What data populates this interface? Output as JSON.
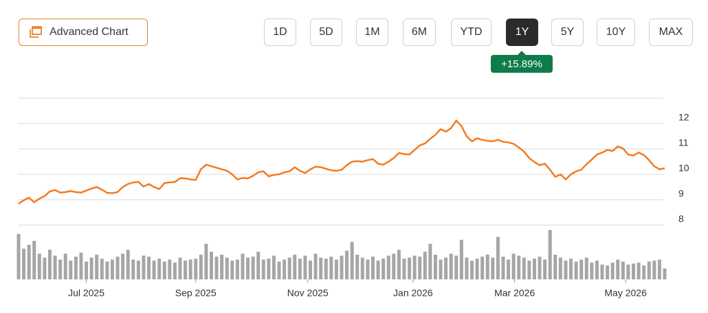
{
  "toolbar": {
    "advanced_chart": "Advanced Chart",
    "ranges": [
      "1D",
      "5D",
      "1M",
      "6M",
      "YTD",
      "1Y",
      "5Y",
      "10Y",
      "MAX"
    ],
    "active_range": "1Y",
    "change": "+15.89%"
  },
  "chart_data": {
    "type": "line",
    "price": {
      "color": "#f47b20",
      "values": [
        8.84,
        8.98,
        9.08,
        8.9,
        9.04,
        9.14,
        9.33,
        9.38,
        9.28,
        9.3,
        9.34,
        9.3,
        9.28,
        9.36,
        9.44,
        9.5,
        9.4,
        9.27,
        9.26,
        9.3,
        9.5,
        9.62,
        9.68,
        9.7,
        9.52,
        9.62,
        9.5,
        9.42,
        9.66,
        9.68,
        9.7,
        9.85,
        9.84,
        9.8,
        9.78,
        10.2,
        10.38,
        10.32,
        10.26,
        10.2,
        10.14,
        10.0,
        9.8,
        9.86,
        9.84,
        9.94,
        10.08,
        10.12,
        9.92,
        9.98,
        10.0,
        10.08,
        10.12,
        10.28,
        10.14,
        10.05,
        10.2,
        10.3,
        10.28,
        10.22,
        10.16,
        10.14,
        10.18,
        10.36,
        10.5,
        10.52,
        10.5,
        10.56,
        10.6,
        10.42,
        10.38,
        10.5,
        10.64,
        10.84,
        10.8,
        10.78,
        10.96,
        11.14,
        11.22,
        11.4,
        11.56,
        11.78,
        11.68,
        11.82,
        12.12,
        11.9,
        11.5,
        11.3,
        11.42,
        11.36,
        11.32,
        11.3,
        11.36,
        11.28,
        11.26,
        11.2,
        11.06,
        10.9,
        10.64,
        10.48,
        10.36,
        10.42,
        10.18,
        9.9,
        10.0,
        9.8,
        10.0,
        10.12,
        10.18,
        10.4,
        10.58,
        10.78,
        10.86,
        10.96,
        10.92,
        11.1,
        11.02,
        10.78,
        10.74,
        10.86,
        10.76,
        10.56,
        10.32,
        10.2,
        10.24
      ]
    },
    "volume": {
      "color": "#a6a6a6",
      "lim": [
        0,
        100
      ],
      "values": [
        92,
        62,
        70,
        78,
        52,
        44,
        60,
        48,
        40,
        52,
        38,
        46,
        54,
        36,
        44,
        50,
        42,
        36,
        40,
        46,
        52,
        60,
        40,
        38,
        48,
        46,
        38,
        42,
        36,
        40,
        34,
        44,
        38,
        40,
        42,
        50,
        72,
        56,
        46,
        50,
        44,
        38,
        40,
        52,
        44,
        46,
        56,
        40,
        42,
        48,
        36,
        40,
        44,
        50,
        42,
        48,
        38,
        52,
        44,
        42,
        46,
        40,
        48,
        58,
        76,
        50,
        44,
        40,
        46,
        38,
        42,
        48,
        52,
        60,
        42,
        44,
        48,
        46,
        56,
        72,
        50,
        40,
        44,
        52,
        48,
        80,
        44,
        38,
        42,
        46,
        50,
        44,
        86,
        46,
        40,
        52,
        48,
        44,
        38,
        42,
        46,
        40,
        100,
        50,
        44,
        38,
        42,
        36,
        40,
        44,
        34,
        38,
        30,
        28,
        34,
        40,
        36,
        30,
        32,
        34,
        28,
        36,
        38,
        40,
        22
      ]
    },
    "ylim": [
      8,
      13
    ],
    "yticks": [
      8,
      9,
      10,
      11,
      12
    ],
    "xlim": [
      0,
      124
    ],
    "xticks": [
      {
        "value": 13,
        "label": "Jul 2025"
      },
      {
        "value": 34,
        "label": "Sep 2025"
      },
      {
        "value": 55.5,
        "label": "Nov 2025"
      },
      {
        "value": 75.7,
        "label": "Jan 2026"
      },
      {
        "value": 95.2,
        "label": "Mar 2026"
      },
      {
        "value": 116.5,
        "label": "May 2026"
      }
    ],
    "grid": true
  }
}
